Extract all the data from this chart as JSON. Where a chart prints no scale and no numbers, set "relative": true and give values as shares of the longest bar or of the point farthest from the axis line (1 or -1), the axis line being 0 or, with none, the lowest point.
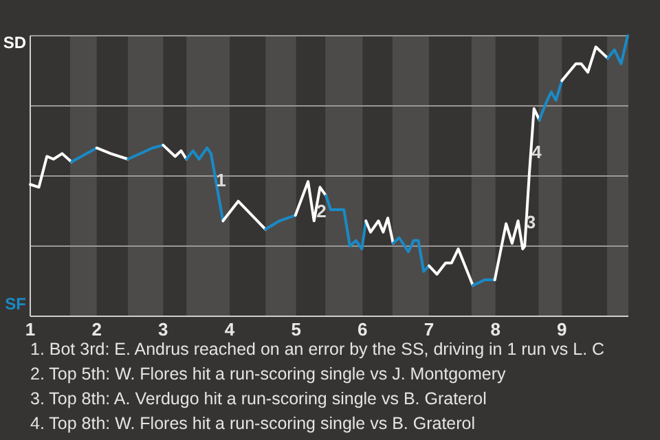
{
  "chart_data": {
    "type": "line",
    "relative": true,
    "xlim": [
      1,
      10
    ],
    "xticks": [
      1,
      2,
      3,
      4,
      5,
      6,
      7,
      8,
      9
    ],
    "series": [
      {
        "color": "#ffffff",
        "x": [
          1,
          1.13,
          1.25,
          1.35,
          1.48,
          1.62
        ],
        "values": [
          0.47,
          0.46,
          0.57,
          0.56,
          0.58,
          0.55
        ]
      },
      {
        "color": "#1a8ac6",
        "x": [
          1.62,
          2.0
        ],
        "values": [
          0.55,
          0.6
        ]
      },
      {
        "color": "#ffffff",
        "x": [
          2.0,
          2.21,
          2.47
        ],
        "values": [
          0.6,
          0.58,
          0.56
        ]
      },
      {
        "color": "#1a8ac6",
        "x": [
          2.47,
          2.84,
          3.0
        ],
        "values": [
          0.56,
          0.6,
          0.61
        ]
      },
      {
        "color": "#ffffff",
        "x": [
          3.0,
          3.18,
          3.27,
          3.35
        ],
        "values": [
          0.61,
          0.57,
          0.59,
          0.56
        ]
      },
      {
        "color": "#1a8ac6",
        "x": [
          3.35,
          3.45,
          3.54,
          3.66,
          3.72,
          3.9
        ],
        "values": [
          0.56,
          0.59,
          0.56,
          0.6,
          0.58,
          0.34
        ]
      },
      {
        "color": "#ffffff",
        "x": [
          3.9,
          4.13,
          4.54
        ],
        "values": [
          0.34,
          0.41,
          0.31
        ]
      },
      {
        "color": "#1a8ac6",
        "x": [
          4.54,
          4.75,
          4.99
        ],
        "values": [
          0.31,
          0.34,
          0.36
        ]
      },
      {
        "color": "#ffffff",
        "x": [
          4.99,
          5.18,
          5.27,
          5.36,
          5.45
        ],
        "values": [
          0.36,
          0.48,
          0.34,
          0.46,
          0.43
        ]
      },
      {
        "color": "#1a8ac6",
        "x": [
          5.45,
          5.52,
          5.72,
          5.81,
          5.9,
          5.99,
          6.05
        ],
        "values": [
          0.43,
          0.38,
          0.38,
          0.25,
          0.27,
          0.24,
          0.34
        ]
      },
      {
        "color": "#ffffff",
        "x": [
          6.05,
          6.12,
          6.24,
          6.31,
          6.38,
          6.46
        ],
        "values": [
          0.34,
          0.3,
          0.34,
          0.3,
          0.35,
          0.26
        ]
      },
      {
        "color": "#1a8ac6",
        "x": [
          6.46,
          6.55,
          6.69,
          6.77,
          6.84,
          6.92,
          7.0
        ],
        "values": [
          0.26,
          0.28,
          0.23,
          0.27,
          0.27,
          0.16,
          0.18
        ]
      },
      {
        "color": "#ffffff",
        "x": [
          7.0,
          7.12,
          7.25,
          7.34,
          7.44,
          7.66
        ],
        "values": [
          0.18,
          0.15,
          0.19,
          0.19,
          0.24,
          0.11
        ]
      },
      {
        "color": "#1a8ac6",
        "x": [
          7.66,
          7.84,
          7.99
        ],
        "values": [
          0.11,
          0.13,
          0.13
        ]
      },
      {
        "color": "#ffffff",
        "x": [
          7.99,
          8.16,
          8.25,
          8.34,
          8.41,
          8.44,
          8.51,
          8.58,
          8.66
        ],
        "values": [
          0.13,
          0.33,
          0.26,
          0.34,
          0.24,
          0.25,
          0.51,
          0.74,
          0.7
        ]
      },
      {
        "color": "#1a8ac6",
        "x": [
          8.66,
          8.76,
          8.84,
          8.91,
          9.0
        ],
        "values": [
          0.7,
          0.76,
          0.8,
          0.77,
          0.84
        ]
      },
      {
        "color": "#ffffff",
        "x": [
          9.0,
          9.21,
          9.29,
          9.39,
          9.51,
          9.69
        ],
        "values": [
          0.84,
          0.9,
          0.9,
          0.87,
          0.96,
          0.92
        ]
      },
      {
        "color": "#1a8ac6",
        "x": [
          9.69,
          9.79,
          9.89,
          9.99
        ],
        "values": [
          0.92,
          0.95,
          0.9,
          1
        ]
      }
    ],
    "ref_lines": [
      {
        "axis": "y",
        "value": 0.25,
        "color": "#9a9896"
      },
      {
        "axis": "y",
        "value": 0.5,
        "color": "#9a9896"
      },
      {
        "axis": "y",
        "value": 0.75,
        "color": "#9a9896"
      }
    ],
    "bands": [
      {
        "axis": "x",
        "from": 1.6,
        "to": 2.0,
        "color": "#4d4b49"
      },
      {
        "axis": "x",
        "from": 2.47,
        "to": 3.0,
        "color": "#4d4b49"
      },
      {
        "axis": "x",
        "from": 3.35,
        "to": 4.0,
        "color": "#4d4b49"
      },
      {
        "axis": "x",
        "from": 4.54,
        "to": 5.0,
        "color": "#4d4b49"
      },
      {
        "axis": "x",
        "from": 5.44,
        "to": 6.0,
        "color": "#4d4b49"
      },
      {
        "axis": "x",
        "from": 6.45,
        "to": 7.0,
        "color": "#4d4b49"
      },
      {
        "axis": "x",
        "from": 7.64,
        "to": 8.0,
        "color": "#4d4b49"
      },
      {
        "axis": "x",
        "from": 8.65,
        "to": 9.0,
        "color": "#4d4b49"
      },
      {
        "axis": "x",
        "from": 9.68,
        "to": 10.0,
        "color": "#4d4b49"
      }
    ],
    "annotations": [
      "SD",
      "SF",
      {
        "text": "1",
        "x": 3.87,
        "y": 0.48
      },
      {
        "text": "2",
        "x": 5.38,
        "y": 0.37
      },
      {
        "text": "3",
        "x": 8.53,
        "y": 0.33
      },
      {
        "text": "4",
        "x": 8.62,
        "y": 0.58
      },
      "1. Bot 3rd: E. Andrus reached on an error by the SS, driving in 1 run vs L. C",
      "2. Top 5th: W. Flores hit a run-scoring single vs J. Montgomery",
      "3. Top 8th: A. Verdugo hit a run-scoring single vs B. Graterol",
      "4. Top 8th: W. Flores hit a run-scoring single vs B. Graterol"
    ]
  }
}
